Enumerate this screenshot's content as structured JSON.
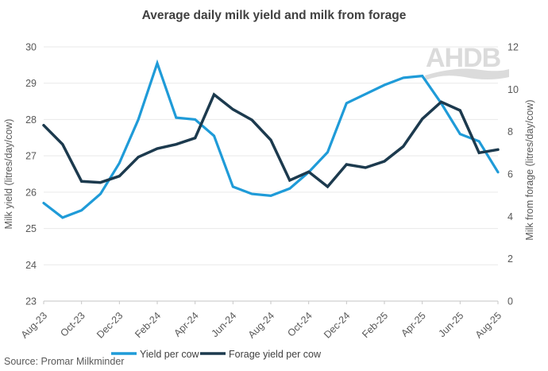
{
  "title": "Average daily milk yield and milk from forage",
  "watermark": "AHDB",
  "source_note": "Source: Promar Milkminder",
  "colors": {
    "yield_line": "#1F9BD8",
    "forage_line": "#1C3A4E",
    "gridline": "#E9E9E9",
    "axis_line": "#C6C6C6",
    "tick_text": "#595959",
    "title_text": "#404040",
    "watermark": "#DBDBDB"
  },
  "legend": {
    "yield_label": "Yield per cow",
    "forage_label": "Forage yield per cow"
  },
  "chart_data": {
    "type": "line",
    "title": "Average daily milk yield and milk from forage",
    "categories": [
      "Aug-23",
      "Sep-23",
      "Oct-23",
      "Nov-23",
      "Dec-23",
      "Jan-24",
      "Feb-24",
      "Mar-24",
      "Apr-24",
      "May-24",
      "Jun-24",
      "Jul-24",
      "Aug-24",
      "Sep-24",
      "Oct-24",
      "Nov-24",
      "Dec-24",
      "Jan-25",
      "Feb-25",
      "Mar-25",
      "Apr-25",
      "May-25",
      "Jun-25",
      "Jul-25",
      "Aug-25"
    ],
    "x_tick_labels": [
      "Aug-23",
      "Oct-23",
      "Dec-23",
      "Feb-24",
      "Apr-24",
      "Jun-24",
      "Aug-24",
      "Oct-24",
      "Dec-24",
      "Feb-25",
      "Apr-25",
      "Jun-25",
      "Aug-25"
    ],
    "x_tick_step": 2,
    "grid": true,
    "legend_position": "bottom",
    "left_axis": {
      "label": "Milk yield (litres/day/cow)",
      "min": 23,
      "max": 30,
      "ticks": [
        23,
        24,
        25,
        26,
        27,
        28,
        29,
        30
      ]
    },
    "right_axis": {
      "label": "Milk from forage (litres/day/cow)",
      "min": 0,
      "max": 12,
      "ticks": [
        0,
        2,
        4,
        6,
        8,
        10,
        12
      ]
    },
    "series": [
      {
        "name": "Yield per cow",
        "axis": "left",
        "color": "#1F9BD8",
        "values": [
          25.7,
          25.3,
          25.5,
          25.95,
          26.8,
          28.0,
          29.55,
          28.05,
          28.0,
          27.55,
          26.15,
          25.95,
          25.9,
          26.1,
          26.55,
          27.1,
          28.45,
          28.7,
          28.95,
          29.15,
          29.2,
          28.45,
          27.6,
          27.4,
          26.55
        ]
      },
      {
        "name": "Forage yield per cow",
        "axis": "right",
        "color": "#1C3A4E",
        "values": [
          8.3,
          7.4,
          5.65,
          5.6,
          5.9,
          6.8,
          7.2,
          7.4,
          7.7,
          9.75,
          9.05,
          8.55,
          7.6,
          5.7,
          6.1,
          5.4,
          6.45,
          6.3,
          6.6,
          7.3,
          8.6,
          9.4,
          9.0,
          7.0,
          7.15
        ]
      }
    ]
  }
}
